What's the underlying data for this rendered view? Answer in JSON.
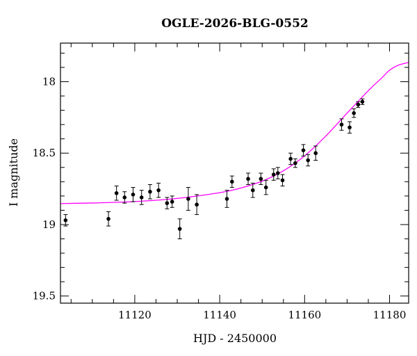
{
  "chart_data": {
    "type": "scatter",
    "title": "OGLE-2026-BLG-0552",
    "xlabel": "HJD - 2450000",
    "ylabel": "I magnitude",
    "xlim": [
      11102.5,
      11184.5
    ],
    "ylim": [
      19.55,
      17.73
    ],
    "y_inverted": true,
    "x_major_ticks": [
      11120,
      11140,
      11160,
      11180
    ],
    "x_minor_step": 5,
    "y_major_ticks": [
      18,
      18.5,
      19,
      19.5
    ],
    "y_minor_step": 0.1,
    "grid": false,
    "colors": {
      "points": "#000000",
      "model": "#ff00ff",
      "axes": "#000000"
    },
    "series": [
      {
        "kind": "points-with-errorbars",
        "points": [
          {
            "x": 11103.7,
            "y": 18.97,
            "err": 0.04
          },
          {
            "x": 11113.8,
            "y": 18.96,
            "err": 0.05
          },
          {
            "x": 11115.7,
            "y": 18.78,
            "err": 0.05
          },
          {
            "x": 11117.6,
            "y": 18.81,
            "err": 0.04
          },
          {
            "x": 11119.6,
            "y": 18.79,
            "err": 0.05
          },
          {
            "x": 11121.6,
            "y": 18.81,
            "err": 0.05
          },
          {
            "x": 11123.6,
            "y": 18.77,
            "err": 0.05
          },
          {
            "x": 11125.6,
            "y": 18.76,
            "err": 0.05
          },
          {
            "x": 11127.6,
            "y": 18.85,
            "err": 0.04
          },
          {
            "x": 11128.8,
            "y": 18.84,
            "err": 0.04
          },
          {
            "x": 11130.6,
            "y": 19.03,
            "err": 0.07
          },
          {
            "x": 11132.6,
            "y": 18.82,
            "err": 0.08
          },
          {
            "x": 11134.6,
            "y": 18.86,
            "err": 0.07
          },
          {
            "x": 11141.7,
            "y": 18.82,
            "err": 0.06
          },
          {
            "x": 11142.9,
            "y": 18.7,
            "err": 0.04
          },
          {
            "x": 11146.7,
            "y": 18.68,
            "err": 0.04
          },
          {
            "x": 11147.8,
            "y": 18.76,
            "err": 0.05
          },
          {
            "x": 11149.7,
            "y": 18.68,
            "err": 0.04
          },
          {
            "x": 11150.9,
            "y": 18.74,
            "err": 0.05
          },
          {
            "x": 11152.7,
            "y": 18.65,
            "err": 0.04
          },
          {
            "x": 11153.7,
            "y": 18.64,
            "err": 0.04
          },
          {
            "x": 11154.8,
            "y": 18.69,
            "err": 0.04
          },
          {
            "x": 11156.7,
            "y": 18.54,
            "err": 0.04
          },
          {
            "x": 11157.8,
            "y": 18.57,
            "err": 0.03
          },
          {
            "x": 11159.7,
            "y": 18.48,
            "err": 0.04
          },
          {
            "x": 11160.8,
            "y": 18.55,
            "err": 0.04
          },
          {
            "x": 11162.6,
            "y": 18.5,
            "err": 0.05
          },
          {
            "x": 11168.7,
            "y": 18.3,
            "err": 0.04
          },
          {
            "x": 11170.6,
            "y": 18.32,
            "err": 0.04
          },
          {
            "x": 11171.6,
            "y": 18.22,
            "err": 0.03
          },
          {
            "x": 11172.6,
            "y": 18.16,
            "err": 0.02
          },
          {
            "x": 11173.6,
            "y": 18.14,
            "err": 0.02
          }
        ]
      },
      {
        "kind": "model-curve",
        "points": [
          {
            "x": 11102.5,
            "y": 18.853
          },
          {
            "x": 11110,
            "y": 18.849
          },
          {
            "x": 11120,
            "y": 18.839
          },
          {
            "x": 11130,
            "y": 18.817
          },
          {
            "x": 11140,
            "y": 18.777
          },
          {
            "x": 11145,
            "y": 18.744
          },
          {
            "x": 11150,
            "y": 18.696
          },
          {
            "x": 11155,
            "y": 18.624
          },
          {
            "x": 11160,
            "y": 18.519
          },
          {
            "x": 11165,
            "y": 18.38
          },
          {
            "x": 11170,
            "y": 18.22
          },
          {
            "x": 11175,
            "y": 18.063
          },
          {
            "x": 11178,
            "y": 17.978
          },
          {
            "x": 11180,
            "y": 17.92
          },
          {
            "x": 11182,
            "y": 17.885
          },
          {
            "x": 11184.5,
            "y": 17.865
          }
        ]
      }
    ]
  }
}
